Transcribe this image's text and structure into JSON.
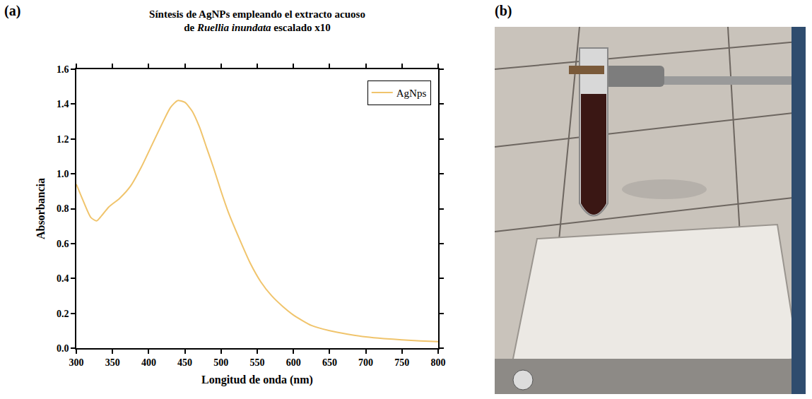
{
  "chart_data": {
    "type": "line",
    "panel_labels": [
      "(a)",
      "(b)"
    ],
    "title": "Síntesis de AgNPs empleando el extracto acuoso de Ruellia inundata escalado x10",
    "title_italic": "Ruellia inundata",
    "x_label": "Longitud de onda (nm)",
    "y_label": "Absorbancia",
    "x": [
      300,
      310,
      320,
      328,
      335,
      345,
      360,
      375,
      390,
      405,
      420,
      430,
      440,
      450,
      460,
      470,
      480,
      490,
      500,
      510,
      525,
      540,
      555,
      570,
      585,
      600,
      625,
      650,
      675,
      700,
      725,
      750,
      775,
      800
    ],
    "series": [
      {
        "name": "AgNps",
        "color": "#f0c46c",
        "values": [
          0.94,
          0.84,
          0.75,
          0.73,
          0.76,
          0.81,
          0.86,
          0.93,
          1.04,
          1.17,
          1.3,
          1.38,
          1.42,
          1.41,
          1.36,
          1.27,
          1.15,
          1.03,
          0.9,
          0.78,
          0.63,
          0.49,
          0.38,
          0.3,
          0.24,
          0.19,
          0.13,
          0.1,
          0.08,
          0.065,
          0.055,
          0.048,
          0.042,
          0.037
        ]
      }
    ],
    "xlim": [
      300,
      800
    ],
    "xticks": [
      300,
      350,
      400,
      450,
      500,
      550,
      600,
      650,
      700,
      750,
      800
    ],
    "ylim": [
      0,
      1.6
    ],
    "yticks": [
      {
        "value": 0,
        "label": "0.0"
      },
      0.2,
      0.4,
      0.6,
      0.8,
      {
        "value": 1,
        "label": "1.0"
      },
      1.2,
      1.4,
      1.6
    ],
    "grid": false,
    "legend": "top right"
  }
}
